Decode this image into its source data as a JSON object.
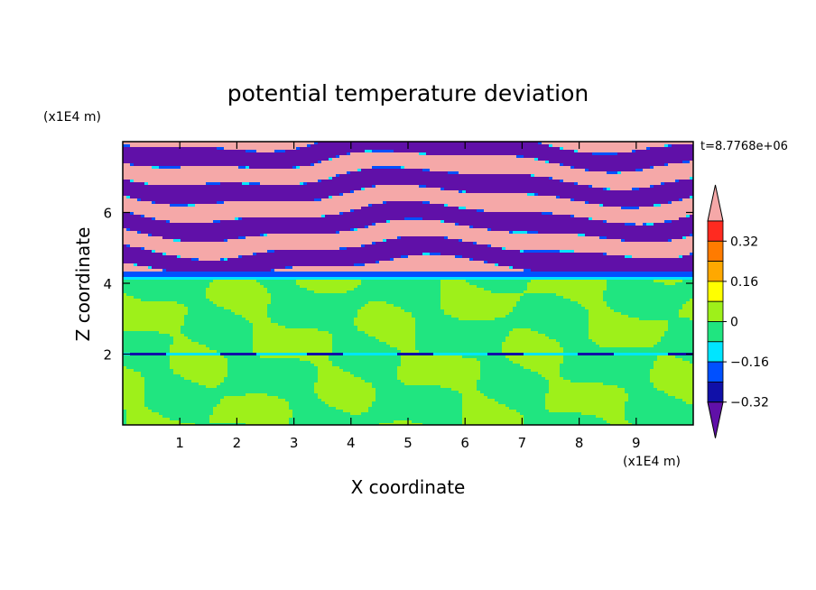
{
  "chart_data": {
    "type": "heatmap",
    "title": "potential temperature deviation",
    "xlabel": "X coordinate",
    "ylabel": "Z coordinate",
    "x_unit": "(x1E4 m)",
    "y_unit": "(x1E4 m)",
    "time_label": "t=8.7768e+06",
    "xlim": [
      0,
      10
    ],
    "ylim": [
      0,
      8
    ],
    "x_ticks": [
      "1",
      "2",
      "3",
      "4",
      "5",
      "6",
      "7",
      "8",
      "9"
    ],
    "y_ticks": [
      "2",
      "4",
      "6"
    ],
    "grid": false,
    "colorbar": {
      "tick_labels": [
        "0.32",
        "0.16",
        "0",
        "−0.16",
        "−0.32"
      ],
      "colors": [
        "#f5a8a8",
        "#ff2a20",
        "#ff7b00",
        "#ffa800",
        "#ffff00",
        "#9ef01a",
        "#20e580",
        "#00e5ff",
        "#0050ff",
        "#1010a8",
        "#6010a8"
      ]
    },
    "bands": [
      {
        "z_from": 4.2,
        "z_to": 8.0,
        "pattern": "alternating purple / pink layers"
      },
      {
        "z_from": 4.1,
        "z_to": 4.3,
        "pattern": "blue / cyan transition layer"
      },
      {
        "z_from": 0.0,
        "z_to": 4.1,
        "pattern": "green / light-green cells"
      }
    ]
  }
}
